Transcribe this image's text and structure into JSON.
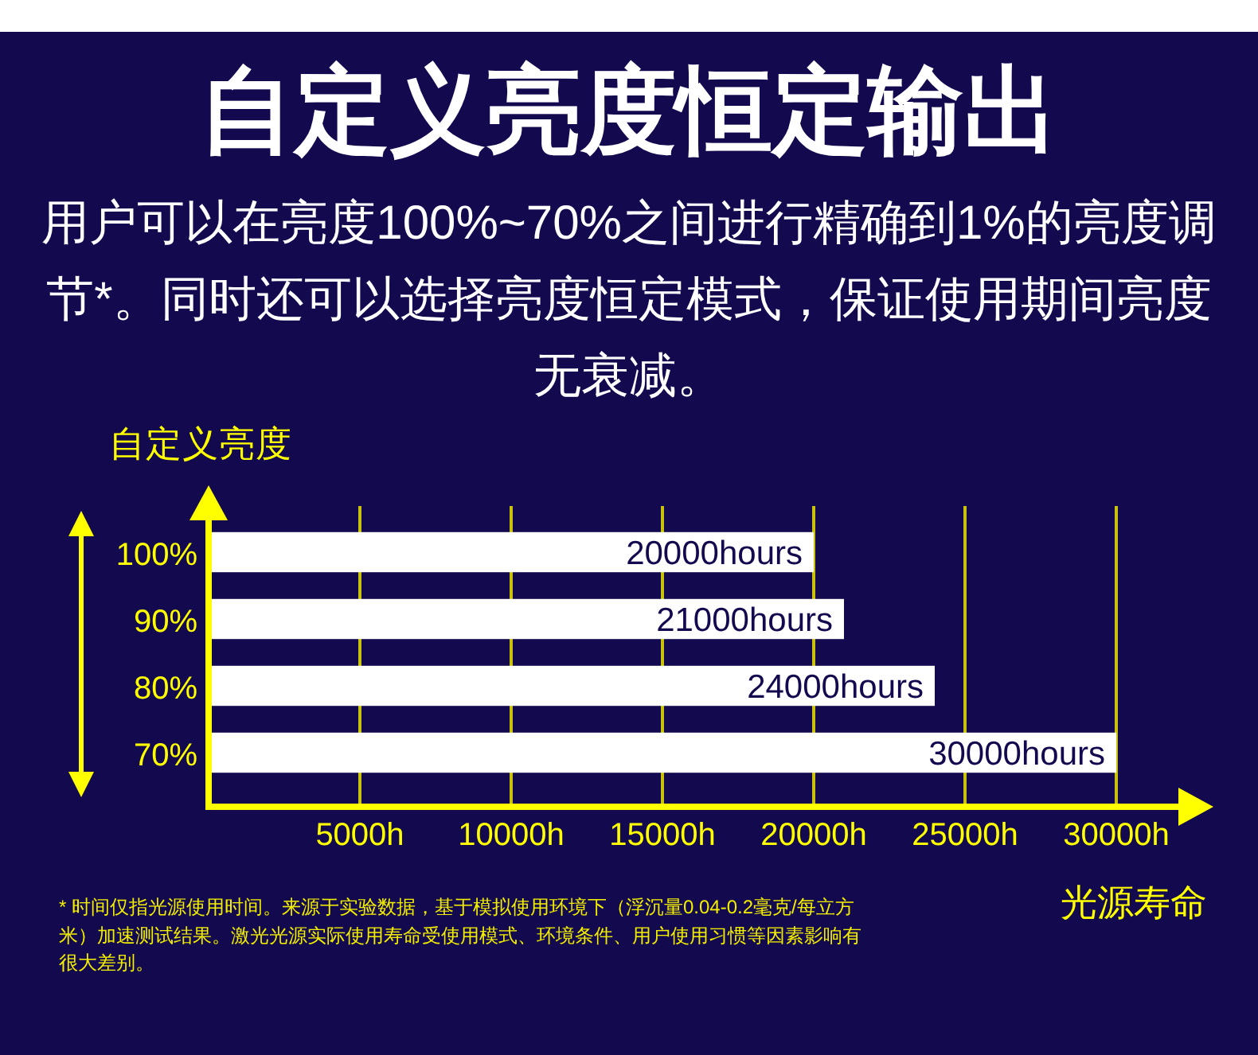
{
  "chart_data": {
    "type": "bar",
    "orientation": "horizontal",
    "title": "自定义亮度恒定输出",
    "subtitle": "用户可以在亮度100%~70%之间进行精确到1%的亮度调节*。同时还可以选择亮度恒定模式，保证使用期间亮度无衰减。",
    "ylabel": "自定义亮度",
    "xlabel": "光源寿命",
    "categories": [
      "100%",
      "90%",
      "80%",
      "70%"
    ],
    "values": [
      20000,
      21000,
      24000,
      30000
    ],
    "color": "#ffffff",
    "value_labels": [
      "20000hours",
      "21000hours",
      "24000hours",
      "30000hours"
    ],
    "xlim": [
      0,
      33000
    ],
    "xticks": [
      {
        "value": 5000,
        "label": "5000h"
      },
      {
        "value": 10000,
        "label": "10000h"
      },
      {
        "value": 15000,
        "label": "15000h"
      },
      {
        "value": 20000,
        "label": "20000h"
      },
      {
        "value": 25000,
        "label": "25000h"
      },
      {
        "value": 30000,
        "label": "30000h"
      }
    ],
    "grid": "x",
    "annotations": [
      "* 时间仅指光源使用时间。来源于实验数据，基于模拟使用环境下（浮沉量0.04-0.2毫克/每立方米）加速测试结果。激光光源实际使用寿命受使用模式、环境条件、用户使用习惯等因素影响有很大差别。"
    ]
  }
}
